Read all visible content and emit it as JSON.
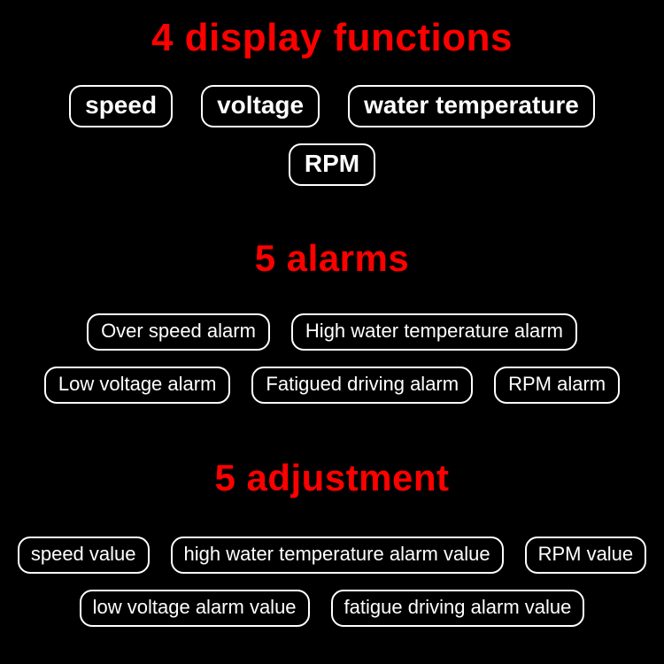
{
  "background_color": "#000000",
  "heading_color": "#ff0000",
  "pill_text_color": "#ffffff",
  "pill_border_color": "#ffffff",
  "sections": {
    "display": {
      "title": "4 display functions",
      "items": [
        "speed",
        "voltage",
        "water temperature",
        "RPM"
      ]
    },
    "alarms": {
      "title": "5 alarms",
      "items": [
        "Over speed alarm",
        "High water temperature alarm",
        "Low voltage alarm",
        "Fatigued driving alarm",
        "RPM alarm"
      ]
    },
    "adjustment": {
      "title": "5 adjustment",
      "items": [
        "speed value",
        "high water temperature alarm value",
        "RPM value",
        "low voltage alarm value",
        "fatigue driving alarm value"
      ]
    }
  }
}
